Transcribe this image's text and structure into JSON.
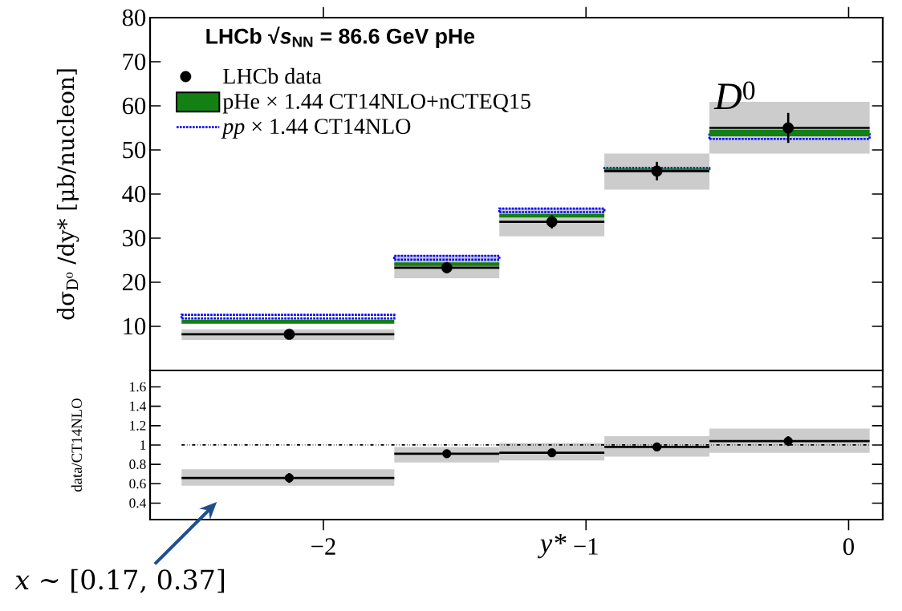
{
  "chart_data": [
    {
      "type": "scatter",
      "title": "LHCb √*s*$_{NN}$ = 86.6 GeV pHe",
      "ylabel": "dσ$_{D⁰}$ /dy* [μb/nucleon]",
      "annotations": [
        "*D*$^{0}$"
      ],
      "x": [
        -2.13,
        -1.53,
        -1.13,
        -0.73,
        -0.23
      ],
      "xlim": [
        -2.66,
        0.13
      ],
      "xticks": [
        -2,
        -1,
        0
      ],
      "ylim": [
        0,
        80
      ],
      "yticks": [
        10,
        20,
        30,
        40,
        50,
        60,
        70,
        80
      ],
      "tick_labels": "y",
      "legend": "top left",
      "grid": false,
      "series": [
        {
          "type": "bar",
          "color": "#cccccc",
          "x": [
            -2.135,
            -1.53,
            -1.13,
            -0.73,
            -0.225
          ],
          "base": [
            6.9,
            20.9,
            30.4,
            41.0,
            49.2
          ],
          "values": [
            2.4,
            5.3,
            6.4,
            8.2,
            11.7
          ]
        },
        {
          "name": "LHCb data",
          "type": "scatter",
          "marker": "circle",
          "color": "#000000",
          "values": [
            8.2,
            23.3,
            33.7,
            45.2,
            55.0
          ],
          "errors": [
            0.5,
            1.2,
            1.5,
            2.1,
            3.4
          ],
          "xerrors": [
            [
              -2.54,
              -1.73
            ],
            [
              -1.73,
              -1.33
            ],
            [
              -1.33,
              -0.93
            ],
            [
              -0.93,
              -0.53
            ],
            [
              -0.53,
              0.08
            ]
          ]
        },
        {
          "name": "pHe × 1.44   CT14NLO+nCTEQ15",
          "type": "bar",
          "line_style": "solid",
          "color": "#128012",
          "x": [
            -2.135,
            -1.53,
            -1.13,
            -0.73,
            -0.225
          ],
          "base": [
            10.6,
            23.7,
            34.7,
            45.1,
            53.1
          ],
          "values": [
            0.9,
            0.8,
            0.8,
            0.7,
            1.5
          ]
        },
        {
          "name": "*pp* × 1.44   CT14NLO",
          "type": "bar",
          "line_style": "dotted",
          "color": "#0000ff",
          "x": [
            -2.135,
            -1.53,
            -1.13,
            -0.73,
            -0.225
          ],
          "base": [
            11.8,
            25.1,
            35.9,
            45.3,
            52.5
          ],
          "values": [
            0.8,
            0.9,
            0.8,
            0.6,
            1.4
          ]
        }
      ]
    },
    {
      "type": "scatter",
      "xlabel": "y*",
      "ylabel": "data/CT14NLO",
      "annotations": [
        "*x* ∼ [0.17, 0.37]"
      ],
      "x": [
        -2.13,
        -1.53,
        -1.13,
        -0.73,
        -0.23
      ],
      "xlim": [
        -2.66,
        0.13
      ],
      "xticks": [
        {
          "value": -2,
          "label": "−2"
        },
        {
          "value": -1,
          "label": "−1"
        },
        0
      ],
      "ylim": [
        0.23,
        1.77
      ],
      "yticks": [
        0.4,
        0.6,
        0.8,
        1,
        1.2,
        1.4,
        1.6
      ],
      "grid": false,
      "ref_lines": [
        {
          "axis": "y",
          "value": 1,
          "line_style": "dashdotted",
          "color": "#000000"
        }
      ],
      "series": [
        {
          "type": "bar",
          "color": "#cccccc",
          "x": [
            -2.135,
            -1.53,
            -1.13,
            -0.73,
            -0.225
          ],
          "base": [
            0.58,
            0.82,
            0.84,
            0.88,
            0.92
          ],
          "values": [
            0.17,
            0.16,
            0.18,
            0.21,
            0.25
          ]
        },
        {
          "type": "scatter",
          "marker": "circle",
          "color": "#000000",
          "values": [
            0.66,
            0.91,
            0.92,
            0.98,
            1.04
          ],
          "errors": [
            0.05,
            0.02,
            0.02,
            0.02,
            0.05
          ],
          "xerrors": [
            [
              -2.54,
              -1.73
            ],
            [
              -1.73,
              -1.33
            ],
            [
              -1.33,
              -0.93
            ],
            [
              -0.93,
              -0.53
            ],
            [
              -0.53,
              0.08
            ]
          ]
        }
      ]
    }
  ]
}
